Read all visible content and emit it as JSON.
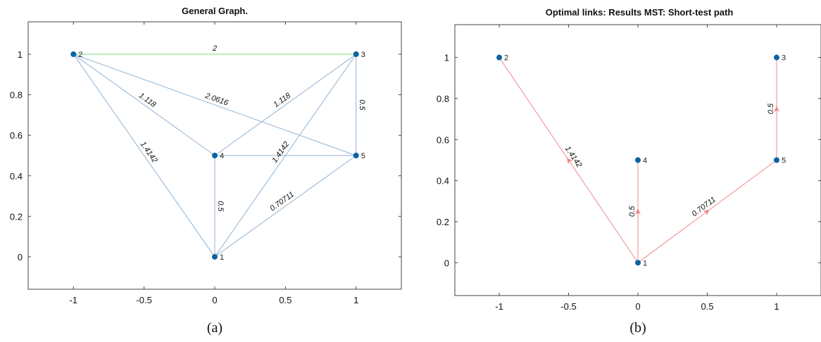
{
  "chart_data": [
    {
      "type": "graph",
      "title": "General Graph.",
      "caption": "(a)",
      "xlim": [
        -1.32,
        1.32
      ],
      "ylim": [
        -0.16,
        1.16
      ],
      "xticks": [
        -1,
        -0.5,
        0,
        0.5,
        1
      ],
      "yticks": [
        0,
        0.2,
        0.4,
        0.6,
        0.8,
        1
      ],
      "directed": false,
      "nodes": [
        {
          "id": "1",
          "x": 0,
          "y": 0
        },
        {
          "id": "2",
          "x": -1,
          "y": 1
        },
        {
          "id": "3",
          "x": 1,
          "y": 1
        },
        {
          "id": "4",
          "x": 0,
          "y": 0.5
        },
        {
          "id": "5",
          "x": 1,
          "y": 0.5
        }
      ],
      "edges": [
        {
          "source": "2",
          "target": "3",
          "weight": "2",
          "color": "#7be07b"
        },
        {
          "source": "2",
          "target": "4",
          "weight": "1.118",
          "color": "#8fb3d3"
        },
        {
          "source": "2",
          "target": "5",
          "weight": "2.0616",
          "color": "#8fb3d3"
        },
        {
          "source": "2",
          "target": "1",
          "weight": "1.4142",
          "color": "#8fb3d3"
        },
        {
          "source": "3",
          "target": "4",
          "weight": "1.118",
          "color": "#8fb3d3"
        },
        {
          "source": "3",
          "target": "1",
          "weight": "1.4142",
          "color": "#8fb3d3"
        },
        {
          "source": "3",
          "target": "5",
          "weight": "0.5",
          "color": "#8fb3d3"
        },
        {
          "source": "4",
          "target": "5",
          "weight": "",
          "color": "#8fb3d3"
        },
        {
          "source": "4",
          "target": "1",
          "weight": "0.5",
          "color": "#8fb3d3"
        },
        {
          "source": "1",
          "target": "5",
          "weight": "0.70711",
          "color": "#8fb3d3"
        }
      ],
      "node_color": "#0b63a5"
    },
    {
      "type": "graph",
      "title": "Optimal links: Results MST: Short-test path",
      "caption": "(b)",
      "xlim": [
        -1.32,
        1.32
      ],
      "ylim": [
        -0.16,
        1.16
      ],
      "xticks": [
        -1,
        -0.5,
        0,
        0.5,
        1
      ],
      "yticks": [
        0,
        0.2,
        0.4,
        0.6,
        0.8,
        1
      ],
      "directed": true,
      "nodes": [
        {
          "id": "1",
          "x": 0,
          "y": 0
        },
        {
          "id": "2",
          "x": -1,
          "y": 1
        },
        {
          "id": "3",
          "x": 1,
          "y": 1
        },
        {
          "id": "4",
          "x": 0,
          "y": 0.5
        },
        {
          "id": "5",
          "x": 1,
          "y": 0.5
        }
      ],
      "edges": [
        {
          "source": "1",
          "target": "2",
          "weight": "1.4142",
          "color": "#f08a8a"
        },
        {
          "source": "1",
          "target": "4",
          "weight": "0.5",
          "color": "#f08a8a"
        },
        {
          "source": "1",
          "target": "5",
          "weight": "0.70711",
          "color": "#f08a8a"
        },
        {
          "source": "5",
          "target": "3",
          "weight": "0.5",
          "color": "#f08a8a"
        }
      ],
      "node_color": "#0b63a5"
    }
  ]
}
